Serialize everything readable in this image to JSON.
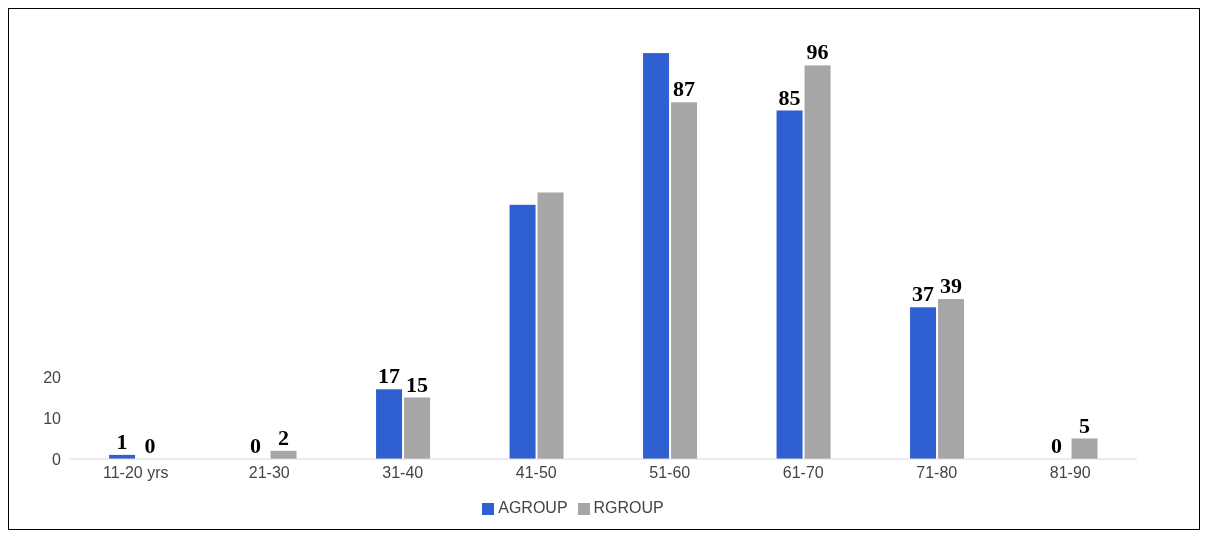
{
  "chart_data": {
    "type": "bar",
    "categories": [
      "11-20 yrs",
      "21-30",
      "31-40",
      "41-50",
      "51-60",
      "61-70",
      "71-80",
      "81-90"
    ],
    "series": [
      {
        "name": "AGROUP",
        "color": "#2f5fd0",
        "values": [
          1,
          0,
          17,
          62,
          99,
          85,
          37,
          0
        ],
        "value_labels": [
          "1",
          "0",
          "17",
          null,
          null,
          "85",
          "37",
          "0"
        ]
      },
      {
        "name": "RGROUP",
        "color": "#a6a6a6",
        "values": [
          0,
          2,
          15,
          65,
          87,
          96,
          39,
          5
        ],
        "value_labels": [
          "0",
          "2",
          "15",
          null,
          "87",
          "96",
          "39",
          "5"
        ]
      }
    ],
    "ylim": [
      0,
      100
    ],
    "yticks": [
      0,
      10,
      20
    ],
    "grid": false,
    "legend": "bottom"
  }
}
